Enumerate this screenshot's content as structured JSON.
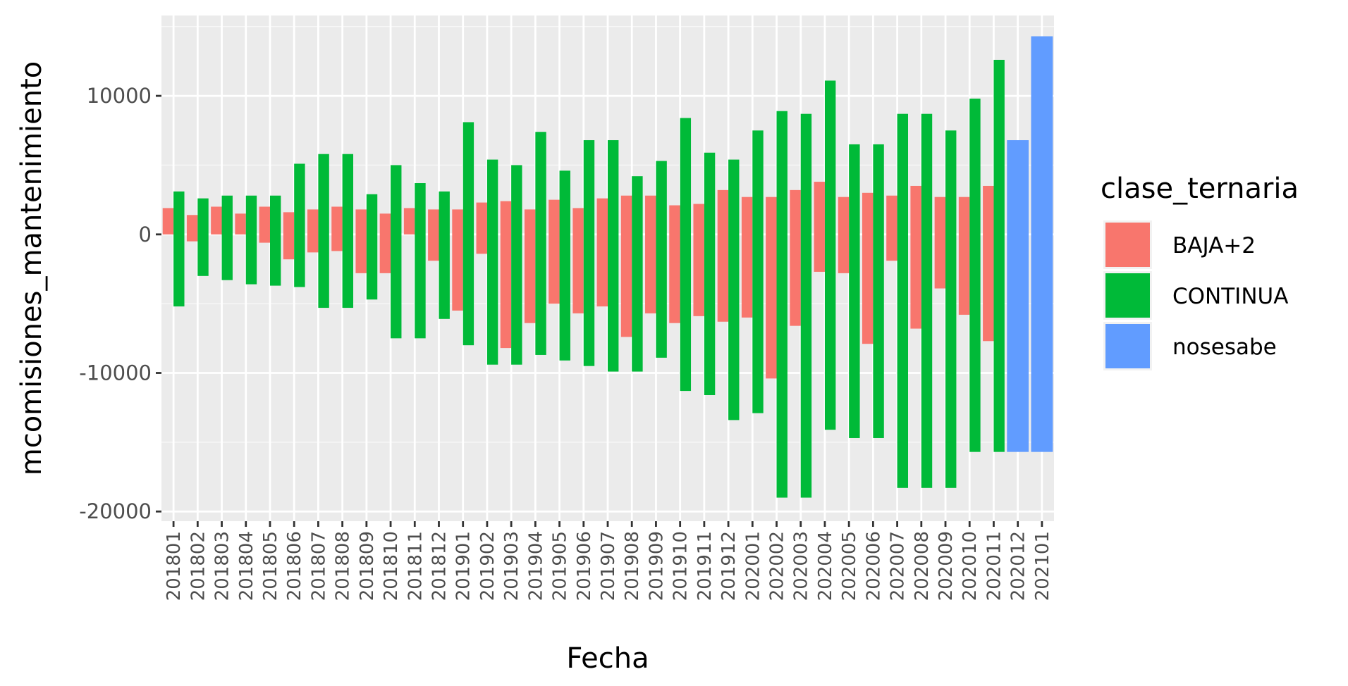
{
  "chart_data": {
    "type": "bar",
    "xlabel": "Fecha",
    "ylabel": "mcomisiones_mantenimiento",
    "ylim": [
      -20700,
      15800
    ],
    "yticks": [
      -20000,
      -10000,
      0,
      10000
    ],
    "ytick_labels": [
      "-20000",
      "-10000",
      "0",
      "10000"
    ],
    "grid": true,
    "legend_title": "clase_ternaria",
    "legend_position": "right",
    "categories": [
      "201801",
      "201802",
      "201803",
      "201804",
      "201805",
      "201806",
      "201807",
      "201808",
      "201809",
      "201810",
      "201811",
      "201812",
      "201901",
      "201902",
      "201903",
      "201904",
      "201905",
      "201906",
      "201907",
      "201908",
      "201909",
      "201910",
      "201911",
      "201912",
      "202001",
      "202002",
      "202003",
      "202004",
      "202005",
      "202006",
      "202007",
      "202008",
      "202009",
      "202010",
      "202011",
      "202012",
      "202101"
    ],
    "series": [
      {
        "name": "BAJA+2",
        "color": "#F8766D",
        "ranges": [
          [
            0,
            1900
          ],
          [
            -500,
            1400
          ],
          [
            0,
            2000
          ],
          [
            0,
            1500
          ],
          [
            -600,
            2000
          ],
          [
            -1800,
            1600
          ],
          [
            -1300,
            1800
          ],
          [
            -1200,
            2000
          ],
          [
            -2800,
            1800
          ],
          [
            -2800,
            1500
          ],
          [
            0,
            1900
          ],
          [
            -1900,
            1800
          ],
          [
            -5500,
            1800
          ],
          [
            -1400,
            2300
          ],
          [
            -8200,
            2400
          ],
          [
            -6400,
            1800
          ],
          [
            -5000,
            2500
          ],
          [
            -5700,
            1900
          ],
          [
            -5200,
            2600
          ],
          [
            -7400,
            2800
          ],
          [
            -5700,
            2800
          ],
          [
            -6400,
            2100
          ],
          [
            -5900,
            2200
          ],
          [
            -6300,
            3200
          ],
          [
            -6000,
            2700
          ],
          [
            -10400,
            2700
          ],
          [
            -6600,
            3200
          ],
          [
            -2700,
            3800
          ],
          [
            -2800,
            2700
          ],
          [
            -7900,
            3000
          ],
          [
            -1900,
            2800
          ],
          [
            -6800,
            3500
          ],
          [
            -3900,
            2700
          ],
          [
            -5800,
            2700
          ],
          [
            -7700,
            3500
          ],
          null,
          null
        ]
      },
      {
        "name": "CONTINUA",
        "color": "#00BA38",
        "ranges": [
          [
            -5200,
            3100
          ],
          [
            -3000,
            2600
          ],
          [
            -3300,
            2800
          ],
          [
            -3600,
            2800
          ],
          [
            -3700,
            2800
          ],
          [
            -3800,
            5100
          ],
          [
            -5300,
            5800
          ],
          [
            -5300,
            5800
          ],
          [
            -4700,
            2900
          ],
          [
            -7500,
            5000
          ],
          [
            -7500,
            3700
          ],
          [
            -6100,
            3100
          ],
          [
            -8000,
            8100
          ],
          [
            -9400,
            5400
          ],
          [
            -9400,
            5000
          ],
          [
            -8700,
            7400
          ],
          [
            -9100,
            4600
          ],
          [
            -9500,
            6800
          ],
          [
            -9900,
            6800
          ],
          [
            -9900,
            4200
          ],
          [
            -8900,
            5300
          ],
          [
            -11300,
            8400
          ],
          [
            -11600,
            5900
          ],
          [
            -13400,
            5400
          ],
          [
            -12900,
            7500
          ],
          [
            -19000,
            8900
          ],
          [
            -19000,
            8700
          ],
          [
            -14100,
            11100
          ],
          [
            -14700,
            6500
          ],
          [
            -14700,
            6500
          ],
          [
            -18300,
            8700
          ],
          [
            -18300,
            8700
          ],
          [
            -18300,
            7500
          ],
          [
            -15700,
            9800
          ],
          [
            -15700,
            12600
          ],
          null,
          null
        ]
      },
      {
        "name": "nosesabe",
        "color": "#619CFF",
        "ranges": [
          null,
          null,
          null,
          null,
          null,
          null,
          null,
          null,
          null,
          null,
          null,
          null,
          null,
          null,
          null,
          null,
          null,
          null,
          null,
          null,
          null,
          null,
          null,
          null,
          null,
          null,
          null,
          null,
          null,
          null,
          null,
          null,
          null,
          null,
          null,
          [
            -15700,
            6800
          ],
          [
            -15700,
            14300
          ]
        ]
      }
    ]
  }
}
